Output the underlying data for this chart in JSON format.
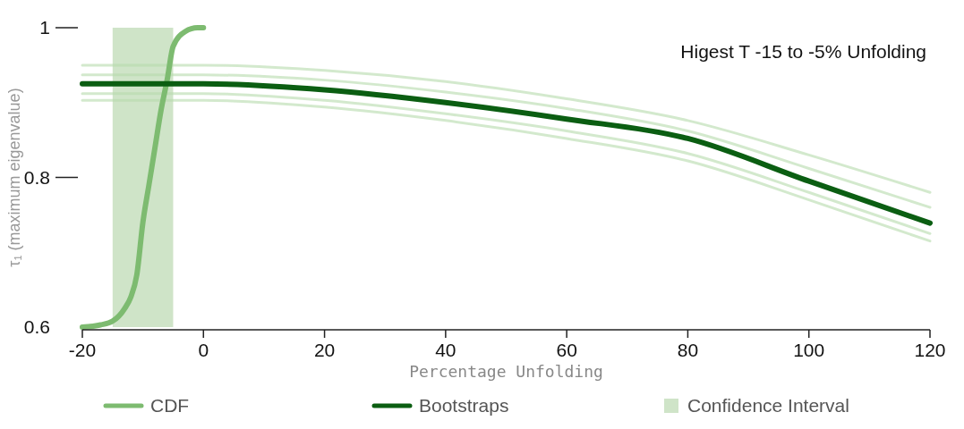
{
  "chart_data": {
    "type": "line",
    "title": "Higest T -15 to -5% Unfolding",
    "xlabel": "Percentage Unfolding",
    "ylabel": "τ₁ (maximum eigenvalue)",
    "xlim": [
      -20,
      120
    ],
    "xticks": [
      -20,
      0,
      20,
      40,
      60,
      80,
      100,
      120
    ],
    "ylim": [
      0.6,
      1
    ],
    "yticks": [
      0.6,
      0.8,
      1
    ],
    "grid": false,
    "legend": "bottom",
    "line_style": "solid",
    "marker": "none",
    "series": [
      {
        "color": "#b5dbac",
        "x": [
          -20,
          0,
          20,
          40,
          60,
          80,
          100,
          120
        ],
        "values": [
          0.95,
          0.95,
          0.943,
          0.928,
          0.905,
          0.876,
          0.83,
          0.78
        ]
      },
      {
        "color": "#b5dbac",
        "x": [
          -20,
          0,
          20,
          40,
          60,
          80,
          100,
          120
        ],
        "values": [
          0.937,
          0.937,
          0.93,
          0.914,
          0.892,
          0.862,
          0.812,
          0.76
        ]
      },
      {
        "color": "#b5dbac",
        "x": [
          -20,
          0,
          20,
          40,
          60,
          80,
          100,
          120
        ],
        "values": [
          0.912,
          0.912,
          0.903,
          0.885,
          0.862,
          0.832,
          0.78,
          0.725
        ]
      },
      {
        "color": "#b5dbac",
        "x": [
          -20,
          0,
          20,
          40,
          60,
          80,
          100,
          120
        ],
        "values": [
          0.903,
          0.903,
          0.894,
          0.876,
          0.852,
          0.822,
          0.77,
          0.715
        ]
      },
      {
        "name": "CDF",
        "color": "#7dbb70",
        "x": [
          -20,
          -17,
          -15,
          -13,
          -12,
          -11,
          -10,
          -9,
          -8,
          -7,
          -6,
          -5,
          -3,
          -1,
          0
        ],
        "values": [
          0.6,
          0.603,
          0.608,
          0.625,
          0.64,
          0.67,
          0.74,
          0.79,
          0.84,
          0.89,
          0.93,
          0.975,
          0.995,
          1.0,
          1.0
        ]
      },
      {
        "name": "Bootstraps",
        "color": "#0b5e12",
        "x": [
          -20,
          0,
          20,
          40,
          60,
          80,
          100,
          120
        ],
        "values": [
          0.925,
          0.925,
          0.917,
          0.9,
          0.878,
          0.852,
          0.795,
          0.739
        ]
      }
    ],
    "bands": [
      {
        "axis": "x",
        "from": -15,
        "to": -5,
        "label": "Confidence Interval",
        "color": "#cfe4c8"
      }
    ]
  }
}
